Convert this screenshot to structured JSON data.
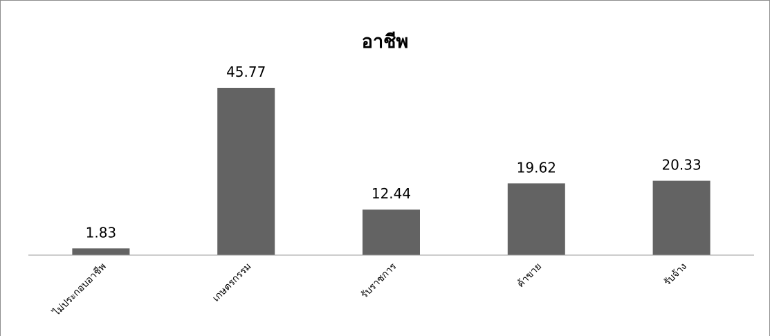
{
  "chart_data": {
    "type": "bar",
    "title": "อาชีพ",
    "categories": [
      "ไม่ประกอบอาชีพ",
      "เกษตรกรรม",
      "รับราชการ",
      "ค้าขาย",
      "รับจ้าง"
    ],
    "values": [
      1.83,
      45.77,
      12.44,
      19.62,
      20.33
    ],
    "data_labels": [
      "1.83",
      "45.77",
      "12.44",
      "19.62",
      "20.33"
    ],
    "xlabel": "",
    "ylabel": "",
    "ylim": [
      0,
      50
    ],
    "grid": false,
    "legend": "none",
    "colors": {
      "bar": "#636363",
      "axis": "#9a9a9a",
      "text": "#000000",
      "border": "#8c8c8c"
    }
  }
}
